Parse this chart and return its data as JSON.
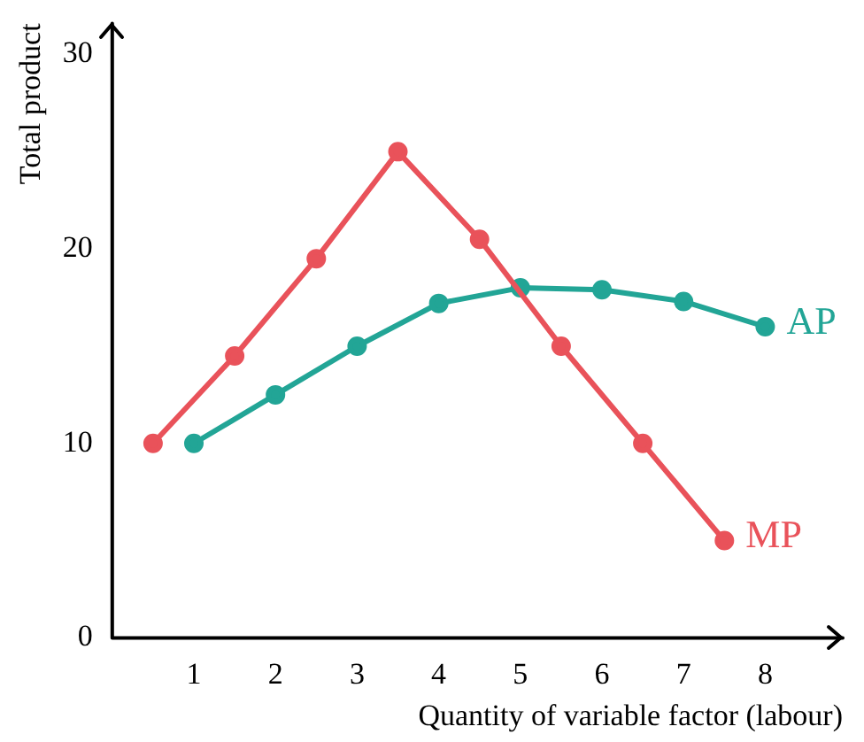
{
  "chart_data": {
    "type": "line",
    "xlabel": "Quantity of variable factor (labour)",
    "ylabel": "Total product",
    "xlim": [
      0,
      8.95
    ],
    "ylim": [
      0,
      31.6
    ],
    "xticks": [
      1,
      2,
      3,
      4,
      5,
      6,
      7,
      8
    ],
    "yticks": [
      0,
      10,
      20,
      30
    ],
    "grid": false,
    "legend": false,
    "marker": "circle",
    "line_style": "solid",
    "series": [
      {
        "name": "MP",
        "color": "#e9525a",
        "x": [
          0.5,
          1.5,
          2.5,
          3.5,
          4.5,
          5.5,
          6.5,
          7.5
        ],
        "values": [
          10,
          14.5,
          19.5,
          25,
          20.5,
          15,
          10,
          5
        ]
      },
      {
        "name": "AP",
        "color": "#22a596",
        "x": [
          1,
          2,
          3,
          4,
          5,
          6,
          7,
          8
        ],
        "values": [
          10,
          12.5,
          15,
          17.2,
          18,
          17.9,
          17.3,
          16
        ]
      }
    ]
  }
}
